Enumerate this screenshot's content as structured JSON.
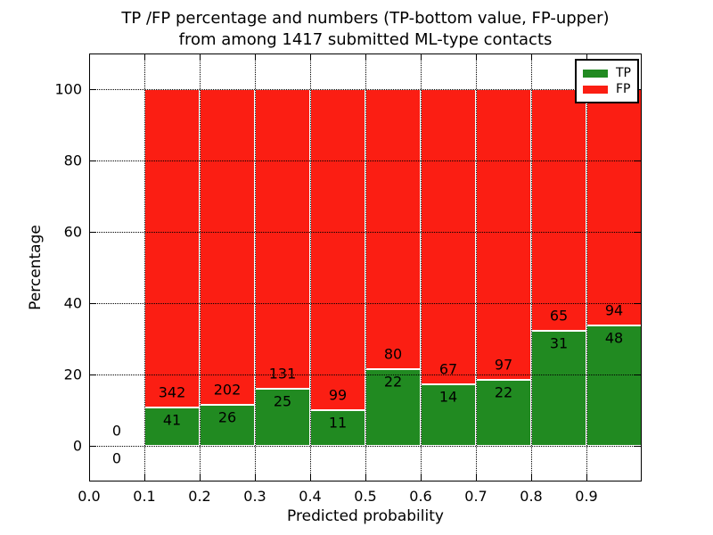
{
  "chart_data": {
    "type": "bar",
    "stacked": true,
    "title": "TP /FP percentage and numbers (TP-bottom value, FP-upper) from among 1417 submitted ML-type contacts",
    "title_lines": [
      "TP /FP percentage and numbers (TP-bottom value, FP-upper)",
      "from among 1417 submitted ML-type contacts"
    ],
    "xlabel": "Predicted probability",
    "ylabel": "Percentage",
    "xlim": [
      0.0,
      1.0
    ],
    "ylim": [
      -10,
      110
    ],
    "xtick_values": [
      0.0,
      0.1,
      0.2,
      0.3,
      0.4,
      0.5,
      0.6,
      0.7,
      0.8,
      0.9
    ],
    "xtick_labels": [
      "0.0",
      "0.1",
      "0.2",
      "0.3",
      "0.4",
      "0.5",
      "0.6",
      "0.7",
      "0.8",
      "0.9"
    ],
    "ytick_values": [
      0,
      20,
      40,
      60,
      80,
      100
    ],
    "ytick_labels": [
      "0",
      "20",
      "40",
      "60",
      "80",
      "100"
    ],
    "grid": {
      "style": "dotted",
      "color": "#000000",
      "on": true
    },
    "bar_heights_note": "segments stack to 100% per bin; green height = tp/(tp+fp)*100",
    "series": [
      {
        "name": "TP",
        "color": "#218a21"
      },
      {
        "name": "FP",
        "color": "#fb1e13"
      }
    ],
    "bins": [
      {
        "range": [
          0.0,
          0.1
        ],
        "tp": 0,
        "fp": 0
      },
      {
        "range": [
          0.1,
          0.2
        ],
        "tp": 41,
        "fp": 342
      },
      {
        "range": [
          0.2,
          0.3
        ],
        "tp": 26,
        "fp": 202
      },
      {
        "range": [
          0.3,
          0.4
        ],
        "tp": 25,
        "fp": 131
      },
      {
        "range": [
          0.4,
          0.5
        ],
        "tp": 11,
        "fp": 99
      },
      {
        "range": [
          0.5,
          0.6
        ],
        "tp": 22,
        "fp": 80
      },
      {
        "range": [
          0.6,
          0.7
        ],
        "tp": 14,
        "fp": 67
      },
      {
        "range": [
          0.7,
          0.8
        ],
        "tp": 22,
        "fp": 97
      },
      {
        "range": [
          0.8,
          0.9
        ],
        "tp": 31,
        "fp": 65
      },
      {
        "range": [
          0.9,
          1.0
        ],
        "tp": 48,
        "fp": 94
      }
    ],
    "legend": {
      "position": "upper right",
      "entries": [
        {
          "label": "TP",
          "color": "#218a21"
        },
        {
          "label": "FP",
          "color": "#fb1e13"
        }
      ]
    }
  },
  "colors": {
    "tp_green": "#218a21",
    "fp_red": "#fb1e13",
    "background": "#ffffff",
    "text": "#000000"
  }
}
